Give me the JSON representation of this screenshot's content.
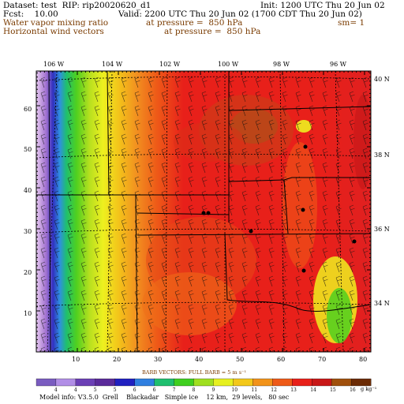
{
  "header": {
    "dataset_line": "Dataset: test  RIP: rip20020620_d1",
    "init_line": "Init: 1200 UTC Thu 20 Jun 02",
    "fcst_line": "Fcst:    10.00",
    "valid_line": "Valid: 2200 UTC Thu 20 Jun 02 (1700 CDT Thu 20 Jun 02)",
    "field1": "Water vapor mixing ratio",
    "field1_pressure": "at pressure =  850 hPa",
    "field1_extra": "sm= 1",
    "field2": "Horizontal wind vectors",
    "field2_pressure": "at pressure =  850 hPa"
  },
  "map": {
    "lon_labels": [
      "106 W",
      "104 W",
      "102 W",
      "100 W",
      "98 W",
      "96 W"
    ],
    "lat_labels": [
      "40 N",
      "38 N",
      "36 N",
      "34 N"
    ],
    "y_grid_labels": [
      "60",
      "50",
      "40",
      "30",
      "20",
      "10"
    ],
    "x_grid_labels": [
      "10",
      "20",
      "30",
      "40",
      "50",
      "60",
      "70",
      "80"
    ]
  },
  "footer": {
    "barb_note": "BARB VECTORS:  FULL BARB = 5 m s⁻¹",
    "colorbar_labels": [
      "4",
      "4",
      "5",
      "5",
      "6",
      "6",
      "7",
      "8",
      "9",
      "10",
      "11",
      "12",
      "13",
      "14",
      "15",
      "16"
    ],
    "colorbar_units": "g kg⁻¹",
    "colorbar_colors": [
      "#7a5cc0",
      "#b18ee6",
      "#6b3fb5",
      "#5a2a9a",
      "#2020c0",
      "#2f7fe0",
      "#1fbf6f",
      "#3fcf1f",
      "#9fdf1f",
      "#e6f01f",
      "#f3c81a",
      "#f2931a",
      "#ee5a18",
      "#e8201a",
      "#c81818",
      "#a0500c",
      "#6b2b05"
    ],
    "model_info": "Model info: V3.5.0  Grell    Blackadar   Simple ice    12 km,  29 levels,   80 sec"
  }
}
